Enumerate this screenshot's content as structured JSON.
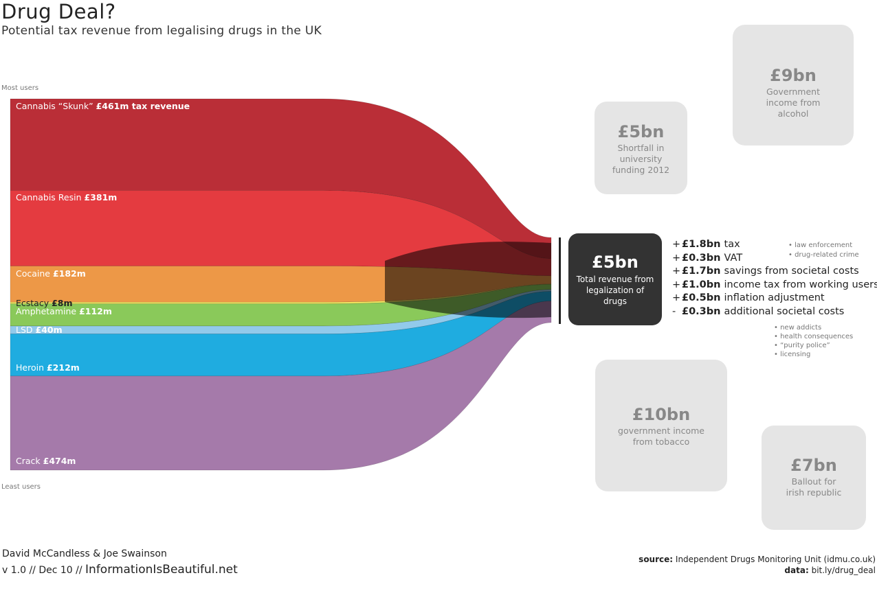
{
  "header": {
    "title": "Drug Deal?",
    "subtitle": "Potential tax revenue from legalising drugs in the UK"
  },
  "axis_notes": {
    "top": "Most users",
    "bottom": "Least users"
  },
  "chart_data": {
    "type": "sankey",
    "title": "Drug Deal?",
    "subtitle": "Potential tax revenue from legalising drugs in the UK",
    "unit": "£m tax revenue",
    "flows": [
      {
        "name": "Cannabis “Skunk”",
        "value_label": "£461m tax revenue",
        "value": 461,
        "color": "#b0111b"
      },
      {
        "name": "Cannabis Resin",
        "value_label": "£381m",
        "value": 381,
        "color": "#e02026"
      },
      {
        "name": "Cocaine",
        "value_label": "£182m",
        "value": 182,
        "color": "#ea8a2e"
      },
      {
        "name": "Ecstacy",
        "value_label": "£8m",
        "value": 8,
        "color": "#f8e84a"
      },
      {
        "name": "Amphetamine",
        "value_label": "£112m",
        "value": 112,
        "color": "#7ac143"
      },
      {
        "name": "LSD",
        "value_label": "£40m",
        "value": 40,
        "color": "#83c3e8"
      },
      {
        "name": "Heroin",
        "value_label": "£212m",
        "value": 212,
        "color": "#00a0dc"
      },
      {
        "name": "Crack",
        "value_label": "£474m",
        "value": 474,
        "color": "#98689e"
      }
    ],
    "total": {
      "value": "£5bn",
      "description": "Total revenue from legalization of drugs"
    },
    "components": [
      {
        "sign": "+",
        "amount": "£1.8bn",
        "label": "tax"
      },
      {
        "sign": "+",
        "amount": "£0.3bn",
        "label": "VAT"
      },
      {
        "sign": "+",
        "amount": "£1.7bn",
        "label": "savings from societal costs"
      },
      {
        "sign": "+",
        "amount": "£1.0bn",
        "label": "income tax from working users"
      },
      {
        "sign": "+",
        "amount": "£0.5bn",
        "label": "inflation adjustment"
      },
      {
        "sign": "-",
        "amount": "£0.3bn",
        "label": "additional societal costs"
      }
    ],
    "savings_notes": [
      "• law enforcement",
      "• drug-related crime"
    ],
    "cost_notes": [
      "• new addicts",
      "• health consequences",
      "• “purity police”",
      "• licensing"
    ],
    "comparisons": [
      {
        "value": "£9bn",
        "description": "Government income from alcohol"
      },
      {
        "value": "£5bn",
        "description": "Shortfall in university funding 2012"
      },
      {
        "value": "£10bn",
        "description": "government income from tobacco"
      },
      {
        "value": "£7bn",
        "description": "Ballout for irish republic"
      }
    ]
  },
  "footer": {
    "authors": "David McCandless  & Joe Swainson",
    "version": "v 1.0 // Dec 10 //",
    "brand": "InformationIsBeautiful.net",
    "source_label": "source:",
    "source_text": "Independent Drugs Monitoring Unit (idmu.co.uk)",
    "data_label": "data:",
    "data_text": "bit.ly/drug_deal"
  },
  "colors": {
    "total_box": "#333333",
    "comparison_box": "#e5e5e5"
  }
}
